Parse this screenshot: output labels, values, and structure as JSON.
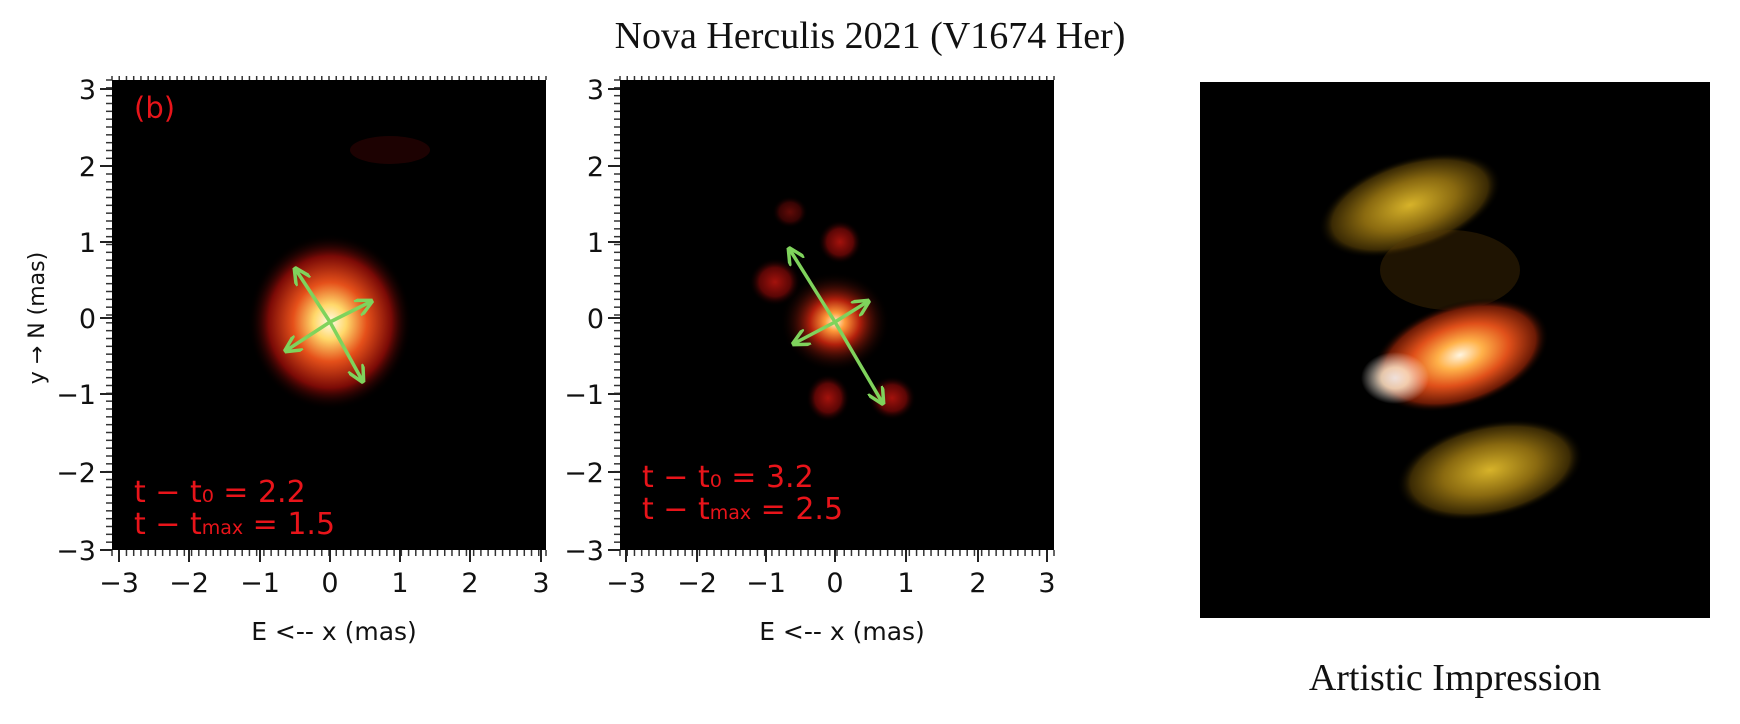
{
  "figure": {
    "title": "Nova Herculis 2021 (V1674 Her)",
    "caption": "Artistic Impression"
  },
  "panels": [
    {
      "panel_label": "(b)",
      "xlabel": "E <-- x (mas)",
      "ylabel": "y → N (mas)",
      "x_ticks": [
        "−3",
        "−2",
        "−1",
        "0",
        "1",
        "2",
        "3"
      ],
      "y_ticks": [
        "3",
        "2",
        "1",
        "0",
        "−1",
        "−2",
        "−3"
      ],
      "annotation_line1": "t − t₀ = 2.2",
      "annotation_line2_prefix": "t − t",
      "annotation_line2_sub": "max",
      "annotation_line2_suffix": " = 1.5"
    },
    {
      "xlabel": "E <-- x (mas)",
      "x_ticks": [
        "−3",
        "−2",
        "−1",
        "0",
        "1",
        "2",
        "3"
      ],
      "y_ticks": [
        "3",
        "2",
        "1",
        "0",
        "−1",
        "−2",
        "−3"
      ],
      "annotation_line1": "t − t₀ = 3.2",
      "annotation_line2_prefix": "t − t",
      "annotation_line2_sub": "max",
      "annotation_line2_suffix": " = 2.5"
    }
  ],
  "colors": {
    "annotation": "#e8141a",
    "arrows": "#7fd35c",
    "image_background": "#000000"
  }
}
